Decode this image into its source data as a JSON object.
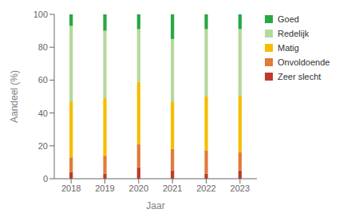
{
  "chart_data": {
    "type": "bar",
    "stacked": true,
    "xlabel": "Jaar",
    "ylabel": "Aandeel (%)",
    "categories": [
      "2018",
      "2019",
      "2020",
      "2021",
      "2022",
      "2023"
    ],
    "series": [
      {
        "name": "Zeer slecht",
        "color": "#c0392b",
        "values": [
          4,
          3,
          7,
          5,
          3,
          5
        ]
      },
      {
        "name": "Onvoldoende",
        "color": "#e07b39",
        "values": [
          9,
          11,
          14,
          13,
          14,
          11
        ]
      },
      {
        "name": "Matig",
        "color": "#f5bd00",
        "values": [
          34,
          35,
          38,
          29,
          33,
          34
        ]
      },
      {
        "name": "Redelijk",
        "color": "#b5d99c",
        "values": [
          46,
          41,
          32,
          38,
          41,
          41
        ]
      },
      {
        "name": "Goed",
        "color": "#27a844",
        "values": [
          7,
          10,
          9,
          15,
          9,
          9
        ]
      }
    ],
    "ylim": [
      0,
      100
    ],
    "yticks": [
      0,
      20,
      40,
      60,
      80,
      100
    ],
    "grid": false,
    "legend": "right"
  }
}
